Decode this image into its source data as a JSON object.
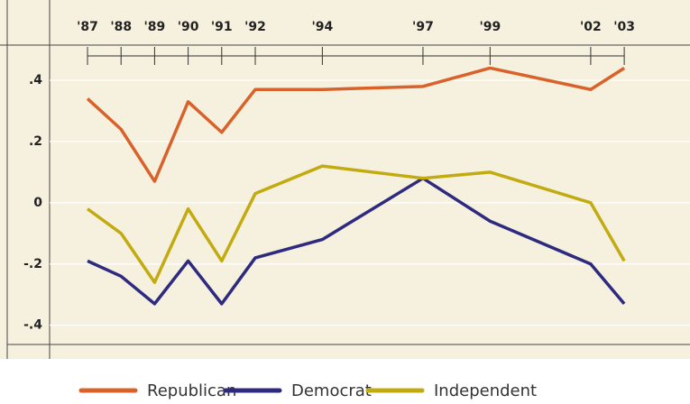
{
  "chart_data": {
    "type": "line",
    "x": [
      1987,
      1988,
      1989,
      1990,
      1991,
      1992,
      1994,
      1997,
      1999,
      2002,
      2003
    ],
    "xlim": [
      1985.87,
      2004.96
    ],
    "xticks": [
      {
        "value": 1987,
        "label": "'87"
      },
      {
        "value": 1988,
        "label": "'88"
      },
      {
        "value": 1989,
        "label": "'89"
      },
      {
        "value": 1990,
        "label": "'90"
      },
      {
        "value": 1991,
        "label": "'91"
      },
      {
        "value": 1992,
        "label": "'92"
      },
      {
        "value": 1994,
        "label": "'94"
      },
      {
        "value": 1997,
        "label": "'97"
      },
      {
        "value": 1999,
        "label": "'99"
      },
      {
        "value": 2002,
        "label": "'02"
      },
      {
        "value": 2003,
        "label": "'03"
      }
    ],
    "ylim": [
      -0.51,
      0.515
    ],
    "yticks": [
      {
        "value": 0.4,
        "label": ".4"
      },
      {
        "value": 0.2,
        "label": ".2"
      },
      0,
      {
        "value": -0.2,
        "label": "-.2"
      },
      {
        "value": -0.4,
        "label": "-.4"
      }
    ],
    "grid": true,
    "series": [
      {
        "name": "Republican",
        "color": "#d9622b",
        "values": [
          0.34,
          0.24,
          0.07,
          0.33,
          0.23,
          0.37,
          0.37,
          0.38,
          0.44,
          0.37,
          0.44
        ]
      },
      {
        "name": "Democrat",
        "color": "#2e2a7f",
        "values": [
          -0.19,
          -0.24,
          -0.33,
          -0.19,
          -0.33,
          -0.18,
          -0.12,
          0.08,
          -0.06,
          -0.2,
          -0.33
        ]
      },
      {
        "name": "Independent",
        "color": "#c2ab10",
        "values": [
          -0.02,
          -0.1,
          -0.26,
          -0.02,
          -0.19,
          0.03,
          0.12,
          0.08,
          0.1,
          0,
          -0.19
        ]
      }
    ]
  }
}
